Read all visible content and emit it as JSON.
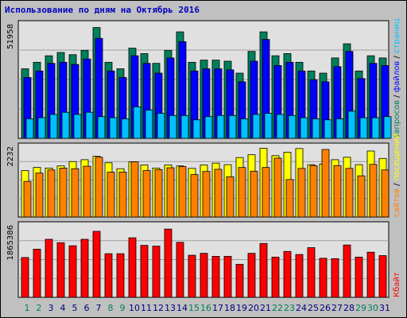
{
  "title": "Использование по дням на Октябрь 2016",
  "colors": {
    "background": "#c0c0c0",
    "plot_bg": "#e0e0e0",
    "grid": "#a0a0a0",
    "hits": "#00805c",
    "files": "#0000ff",
    "pages": "#00c0ff",
    "visits": "#ffff00",
    "sites": "#ff8000",
    "kbytes": "#ff0000",
    "weekend_label": "#00805c",
    "weekday_label": "#000080"
  },
  "chart_data": [
    {
      "type": "bar",
      "panel": "requests",
      "max_label": "51958",
      "legend": [
        {
          "text": "запросов",
          "color": "#00805c"
        },
        {
          "text": "файлов",
          "color": "#0000ff"
        },
        {
          "text": "страниц",
          "color": "#00c0ff"
        }
      ],
      "legend_separator": " / ",
      "categories": [
        "1",
        "2",
        "3",
        "4",
        "5",
        "6",
        "7",
        "8",
        "9",
        "10",
        "11",
        "12",
        "13",
        "14",
        "15",
        "16",
        "17",
        "18",
        "19",
        "20",
        "21",
        "22",
        "23",
        "24",
        "25",
        "26",
        "27",
        "28",
        "29",
        "30",
        "31"
      ],
      "weekend": [
        1,
        2,
        8,
        9,
        15,
        16,
        22,
        23,
        29,
        30
      ],
      "ylim": [
        0,
        51958
      ],
      "series": [
        {
          "name": "запросов",
          "values": [
            32000,
            35000,
            38000,
            39500,
            38500,
            40500,
            51000,
            35000,
            32000,
            41500,
            39000,
            34500,
            40500,
            49000,
            35000,
            36000,
            36000,
            35500,
            30000,
            40000,
            49000,
            38000,
            39000,
            35000,
            31000,
            30000,
            37000,
            43500,
            31000,
            38000,
            37000
          ]
        },
        {
          "name": "файлов",
          "values": [
            28000,
            31000,
            34500,
            35000,
            34000,
            36500,
            46000,
            31000,
            28000,
            38000,
            34500,
            30000,
            37000,
            44500,
            31000,
            32000,
            32000,
            31500,
            26000,
            35500,
            45500,
            33500,
            35000,
            31000,
            27000,
            26000,
            33000,
            40000,
            27500,
            34500,
            33500
          ]
        },
        {
          "name": "страниц",
          "values": [
            9000,
            9500,
            11000,
            12000,
            11000,
            12000,
            10000,
            9500,
            9000,
            14500,
            13000,
            11500,
            10500,
            10500,
            8500,
            10000,
            10500,
            10500,
            9000,
            11000,
            11500,
            11000,
            10500,
            9500,
            9000,
            8500,
            9000,
            12500,
            9500,
            9500,
            10000
          ]
        }
      ]
    },
    {
      "type": "bar",
      "panel": "visits",
      "max_label": "2232",
      "legend": [
        {
          "text": "сайтов",
          "color": "#ff8000"
        },
        {
          "text": "посещений",
          "color": "#ffff00"
        }
      ],
      "legend_separator": " / ",
      "categories": [
        "1",
        "2",
        "3",
        "4",
        "5",
        "6",
        "7",
        "8",
        "9",
        "10",
        "11",
        "12",
        "13",
        "14",
        "15",
        "16",
        "17",
        "18",
        "19",
        "20",
        "21",
        "22",
        "23",
        "24",
        "25",
        "26",
        "27",
        "28",
        "29",
        "30",
        "31"
      ],
      "ylim": [
        0,
        2232
      ],
      "series": [
        {
          "name": "посещений",
          "values": [
            1500,
            1600,
            1580,
            1650,
            1790,
            1850,
            1960,
            1750,
            1560,
            1780,
            1680,
            1580,
            1680,
            1650,
            1570,
            1680,
            1740,
            1690,
            1920,
            2010,
            2220,
            1980,
            2090,
            2210,
            1690,
            1710,
            1850,
            1930,
            1690,
            2130,
            1890
          ]
        },
        {
          "name": "сайтов",
          "values": [
            1150,
            1420,
            1520,
            1580,
            1560,
            1640,
            1930,
            1450,
            1450,
            1780,
            1500,
            1530,
            1590,
            1630,
            1370,
            1470,
            1540,
            1300,
            1600,
            1480,
            1600,
            1900,
            1210,
            1570,
            1660,
            2180,
            1660,
            1570,
            1330,
            1700,
            1520
          ]
        }
      ]
    },
    {
      "type": "bar",
      "panel": "kbytes",
      "max_label": "1865386",
      "legend": [
        {
          "text": "Кбайт",
          "color": "#ff0000"
        }
      ],
      "legend_separator": "",
      "categories": [
        "1",
        "2",
        "3",
        "4",
        "5",
        "6",
        "7",
        "8",
        "9",
        "10",
        "11",
        "12",
        "13",
        "14",
        "15",
        "16",
        "17",
        "18",
        "19",
        "20",
        "21",
        "22",
        "23",
        "24",
        "25",
        "26",
        "27",
        "28",
        "29",
        "30",
        "31"
      ],
      "ylim": [
        0,
        1865386
      ],
      "series": [
        {
          "name": "Кбайт",
          "values": [
            1050000,
            1270000,
            1530000,
            1440000,
            1360000,
            1530000,
            1740000,
            1150000,
            1150000,
            1570000,
            1370000,
            1350000,
            1800000,
            1450000,
            1110000,
            1160000,
            1080000,
            1080000,
            870000,
            1160000,
            1420000,
            1060000,
            1210000,
            1130000,
            1310000,
            1030000,
            1020000,
            1380000,
            1060000,
            1190000,
            1100000
          ]
        }
      ]
    }
  ]
}
